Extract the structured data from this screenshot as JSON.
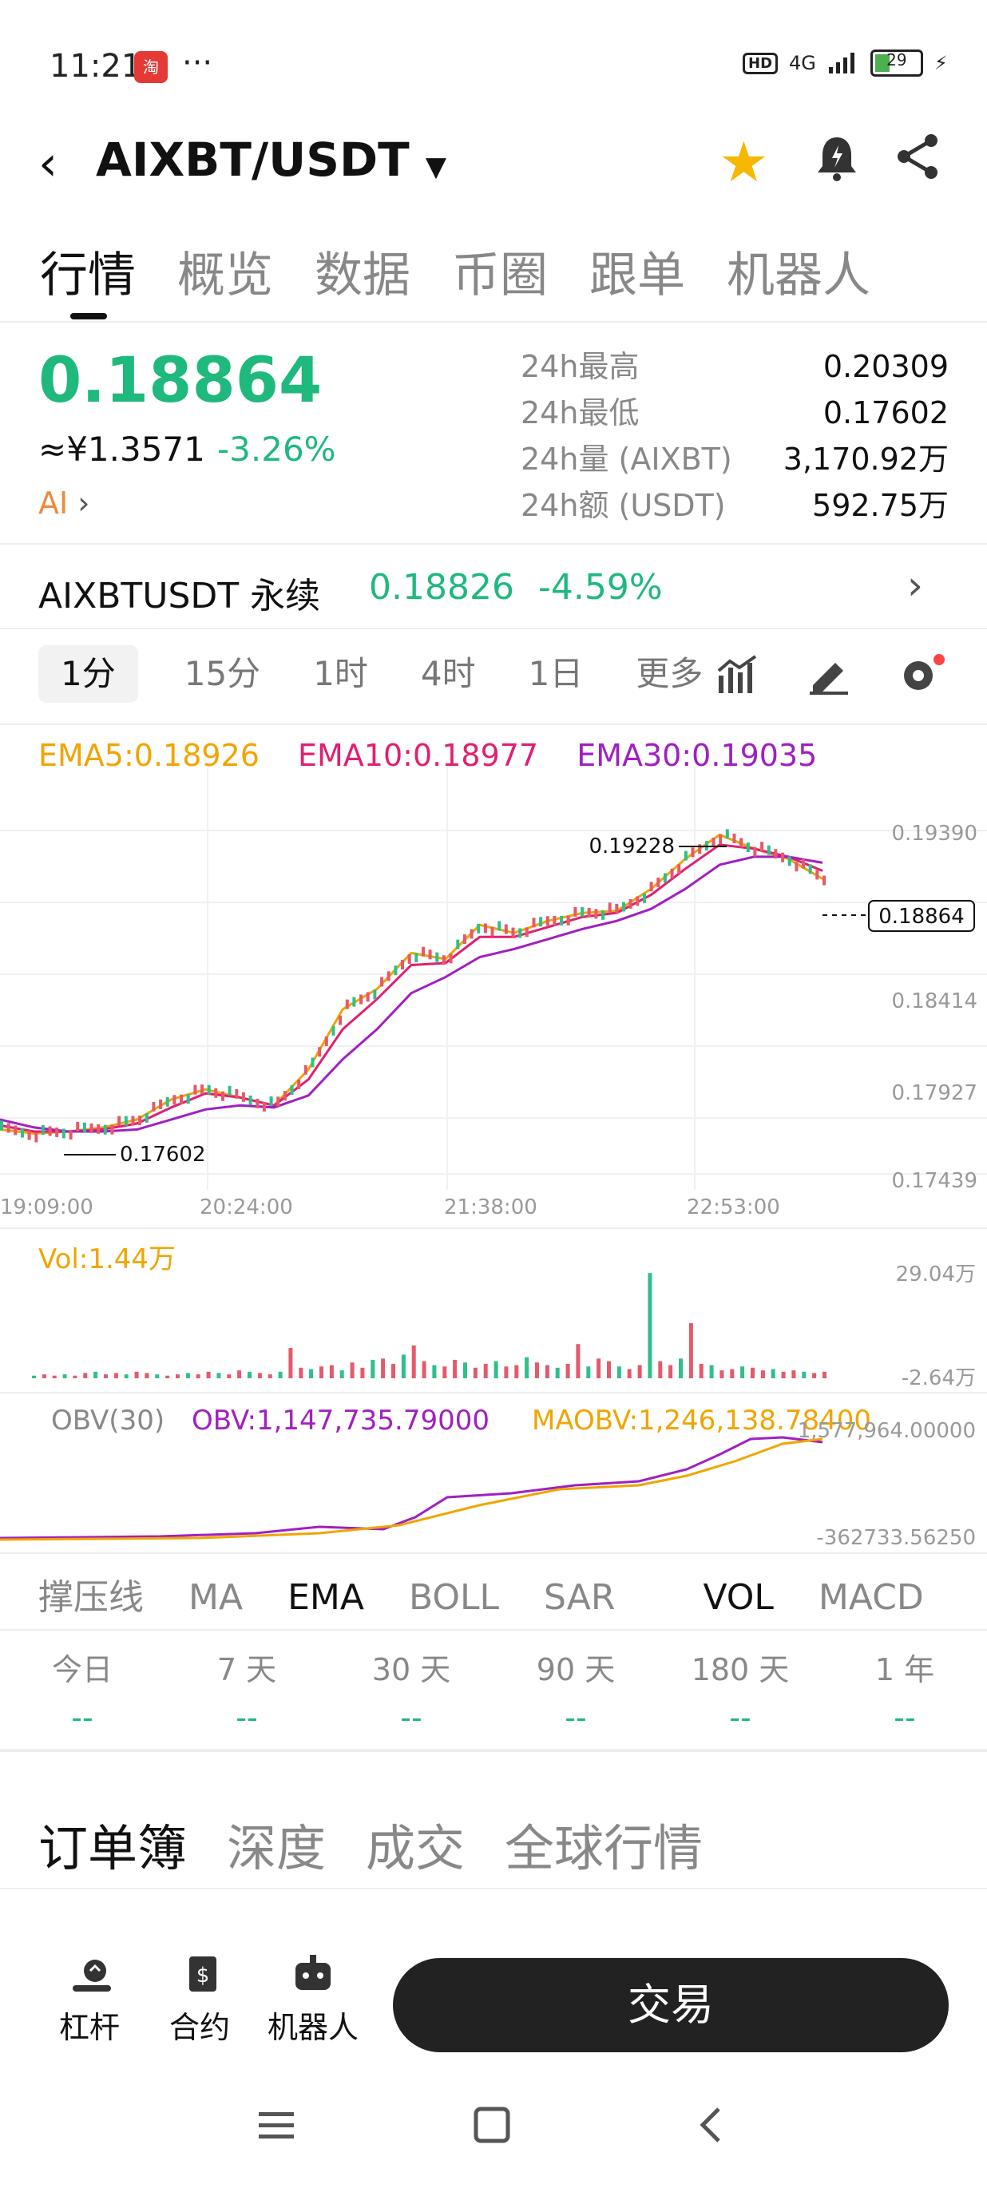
{
  "status_bar": {
    "time": "11:21",
    "app_badge": "淘",
    "dots": "···",
    "hd": "HD",
    "network": "4G",
    "battery": "29"
  },
  "header": {
    "pair": "AIXBT/USDT",
    "back_icon": "back-arrow-icon",
    "star_icon": "star-icon",
    "bell_icon": "bell-icon",
    "share_icon": "share-icon"
  },
  "tabs": [
    "行情",
    "概览",
    "数据",
    "币圈",
    "跟单",
    "机器人"
  ],
  "summary": {
    "price": "0.18864",
    "cny": "≈¥1.3571",
    "change": "-3.26%",
    "ai": "AI",
    "stats": [
      {
        "label": "24h最高",
        "value": "0.20309"
      },
      {
        "label": "24h最低",
        "value": "0.17602"
      },
      {
        "label": "24h量 (AIXBT)",
        "value": "3,170.92万"
      },
      {
        "label": "24h额 (USDT)",
        "value": "592.75万"
      }
    ]
  },
  "perpetual": {
    "label": "AIXBTUSDT 永续",
    "price": "0.18826",
    "change": "-4.59%"
  },
  "intervals": [
    "1分",
    "15分",
    "1时",
    "4时",
    "1日",
    "更多"
  ],
  "ema": {
    "ema5": "EMA5:0.18926",
    "ema10": "EMA10:0.18977",
    "ema30": "EMA30:0.19035"
  },
  "chart_data": {
    "type": "line",
    "price_axis": [
      "0.19390",
      "0.18414",
      "0.17927",
      "0.17439"
    ],
    "time_axis": [
      "19:09:00",
      "20:24:00",
      "21:38:00",
      "22:53:00"
    ],
    "high_label": "0.19228",
    "low_label": "0.17602",
    "last_price": "0.18864",
    "ylim": [
      0.17439,
      0.1939
    ],
    "series": [
      {
        "name": "EMA5",
        "color": "#f0a500",
        "values": [
          0.177,
          0.1768,
          0.1769,
          0.1771,
          0.1775,
          0.1785,
          0.179,
          0.1786,
          0.1782,
          0.18,
          0.183,
          0.184,
          0.1858,
          0.1855,
          0.1872,
          0.1868,
          0.1874,
          0.1878,
          0.1879,
          0.189,
          0.1905,
          0.1917,
          0.191,
          0.1905,
          0.1895
        ]
      },
      {
        "name": "EMA10",
        "color": "#e02072",
        "values": [
          0.1772,
          0.1769,
          0.1769,
          0.177,
          0.1773,
          0.1781,
          0.1788,
          0.1786,
          0.1782,
          0.1795,
          0.182,
          0.1835,
          0.1852,
          0.1853,
          0.1866,
          0.1866,
          0.1871,
          0.1876,
          0.1878,
          0.1887,
          0.19,
          0.1912,
          0.191,
          0.1906,
          0.1899
        ]
      },
      {
        "name": "EMA30",
        "color": "#a020c0",
        "values": [
          0.1775,
          0.1771,
          0.1769,
          0.1769,
          0.177,
          0.1775,
          0.178,
          0.1782,
          0.1781,
          0.1787,
          0.1805,
          0.182,
          0.1838,
          0.1846,
          0.1856,
          0.186,
          0.1865,
          0.187,
          0.1874,
          0.188,
          0.189,
          0.1902,
          0.1906,
          0.1906,
          0.1903
        ]
      }
    ],
    "vol_label": "Vol:1.44万",
    "vol_axis": [
      "29.04万",
      "-2.64万"
    ],
    "vol_values": [
      0.2,
      0.3,
      0.2,
      0.3,
      0.2,
      0.4,
      0.5,
      0.3,
      0.4,
      0.3,
      0.5,
      0.4,
      0.3,
      0.2,
      0.3,
      0.4,
      0.3,
      0.5,
      0.4,
      0.3,
      0.6,
      0.5,
      0.4,
      0.3,
      0.5,
      2.3,
      0.8,
      0.7,
      0.9,
      1.0,
      0.6,
      1.2,
      0.8,
      1.4,
      1.5,
      1.1,
      1.8,
      2.5,
      1.3,
      1.0,
      0.9,
      1.4,
      1.2,
      0.8,
      1.1,
      1.3,
      0.9,
      1.0,
      1.6,
      1.2,
      1.0,
      0.8,
      1.1,
      2.6,
      0.9,
      1.5,
      1.3,
      0.9,
      0.7,
      1.0,
      8.0,
      1.3,
      1.0,
      1.5,
      4.2,
      1.1,
      1.0,
      0.6,
      0.7,
      0.9,
      0.8,
      0.6,
      0.7,
      0.5,
      0.6,
      0.5,
      0.4,
      0.5
    ],
    "obv_label": "OBV(30)",
    "obv": "OBV:1,147,735.79000",
    "maobv": "MAOBV:1,246,138.78400",
    "obv_axis": [
      "1,577,964.00000",
      "-362733.56250"
    ]
  },
  "indicators": [
    "撑压线",
    "MA",
    "EMA",
    "BOLL",
    "SAR",
    "VOL",
    "MACD"
  ],
  "periods": [
    {
      "label": "今日",
      "value": "--"
    },
    {
      "label": "7 天",
      "value": "--"
    },
    {
      "label": "30 天",
      "value": "--"
    },
    {
      "label": "90 天",
      "value": "--"
    },
    {
      "label": "180 天",
      "value": "--"
    },
    {
      "label": "1 年",
      "value": "--"
    }
  ],
  "book_tabs": [
    "订单簿",
    "深度",
    "成交",
    "全球行情"
  ],
  "bottom": {
    "lever": "杠杆",
    "contract": "合约",
    "robot": "机器人",
    "trade": "交易"
  }
}
